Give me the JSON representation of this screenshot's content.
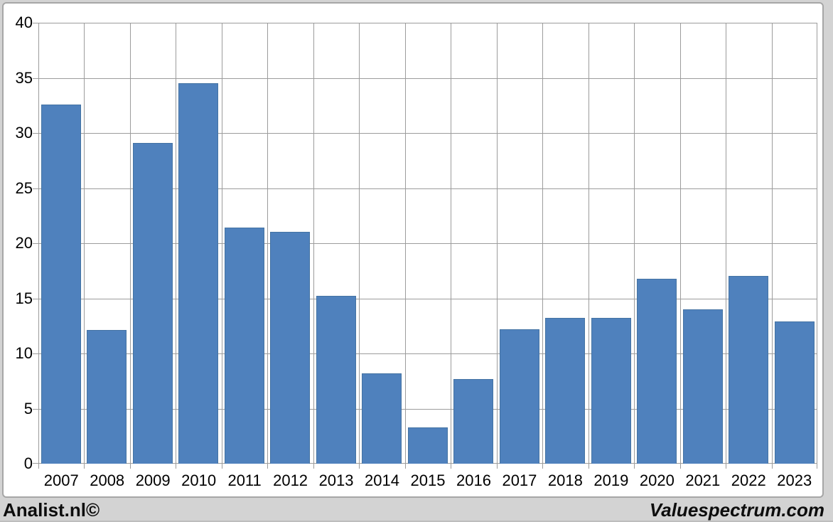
{
  "footer": {
    "left": "Analist.nl©",
    "right": "Valuespectrum.com"
  },
  "chart_data": {
    "type": "bar",
    "title": "",
    "xlabel": "",
    "ylabel": "",
    "categories": [
      "2007",
      "2008",
      "2009",
      "2010",
      "2011",
      "2012",
      "2013",
      "2014",
      "2015",
      "2016",
      "2017",
      "2018",
      "2019",
      "2020",
      "2021",
      "2022",
      "2023"
    ],
    "values": [
      32.6,
      12.1,
      29.1,
      34.5,
      21.4,
      21.0,
      15.2,
      8.2,
      3.3,
      7.7,
      12.2,
      13.2,
      13.2,
      16.8,
      14.0,
      17.0,
      12.9
    ],
    "ylim": [
      0,
      40
    ],
    "yticks": [
      0,
      5,
      10,
      15,
      20,
      25,
      30,
      35,
      40
    ],
    "grid": true,
    "legend": "none",
    "colors": {
      "bar_fill": "#4f81bd",
      "bar_border": "#4473a3",
      "gridline": "#9c9c9c",
      "plot_border": "#9c9c9c",
      "plot_background": "#ffffff",
      "outer_background": "#d3d3d3",
      "panel_border": "#a6a6a6",
      "text": "#000000"
    }
  }
}
